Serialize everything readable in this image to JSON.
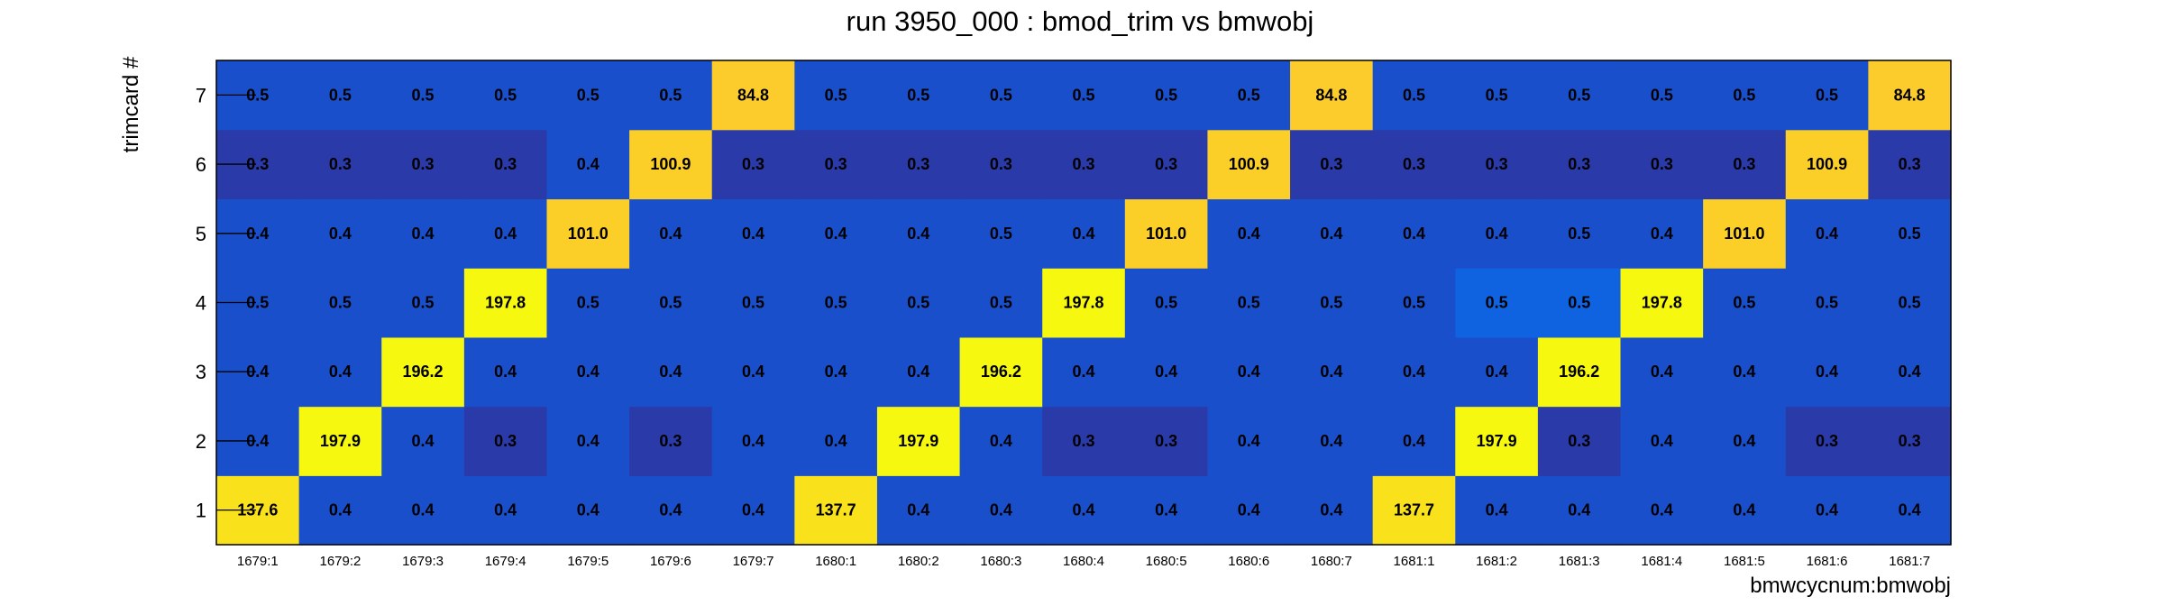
{
  "chart_data": {
    "type": "heatmap",
    "title": "run 3950_000 : bmod_trim vs bmwobj",
    "xlabel": "bmwcycnum:bmwobj",
    "ylabel": "trimcard #",
    "x_categories": [
      "1679:1",
      "1679:2",
      "1679:3",
      "1679:4",
      "1679:5",
      "1679:6",
      "1679:7",
      "1680:1",
      "1680:2",
      "1680:3",
      "1680:4",
      "1680:5",
      "1680:6",
      "1680:7",
      "1681:1",
      "1681:2",
      "1681:3",
      "1681:4",
      "1681:5",
      "1681:6",
      "1681:7"
    ],
    "y_categories": [
      "1",
      "2",
      "3",
      "4",
      "5",
      "6",
      "7"
    ],
    "values": [
      [
        137.6,
        0.4,
        0.4,
        0.4,
        0.4,
        0.4,
        0.4,
        137.7,
        0.4,
        0.4,
        0.4,
        0.4,
        0.4,
        0.4,
        137.7,
        0.4,
        0.4,
        0.4,
        0.4,
        0.4,
        0.4
      ],
      [
        0.4,
        197.9,
        0.4,
        0.3,
        0.4,
        0.3,
        0.4,
        0.4,
        197.9,
        0.4,
        0.3,
        0.3,
        0.4,
        0.4,
        0.4,
        197.9,
        0.3,
        0.4,
        0.4,
        0.3,
        0.3
      ],
      [
        0.4,
        0.4,
        196.2,
        0.4,
        0.4,
        0.4,
        0.4,
        0.4,
        0.4,
        196.2,
        0.4,
        0.4,
        0.4,
        0.4,
        0.4,
        0.4,
        196.2,
        0.4,
        0.4,
        0.4,
        0.4
      ],
      [
        0.5,
        0.5,
        0.5,
        197.8,
        0.5,
        0.5,
        0.5,
        0.5,
        0.5,
        0.5,
        197.8,
        0.5,
        0.5,
        0.5,
        0.5,
        0.5,
        0.5,
        197.8,
        0.5,
        0.5,
        0.5
      ],
      [
        0.4,
        0.4,
        0.4,
        0.4,
        101.0,
        0.4,
        0.4,
        0.4,
        0.4,
        0.5,
        0.4,
        101.0,
        0.4,
        0.4,
        0.4,
        0.4,
        0.5,
        0.4,
        101.0,
        0.4,
        0.5
      ],
      [
        0.3,
        0.3,
        0.3,
        0.3,
        0.4,
        100.9,
        0.3,
        0.3,
        0.3,
        0.3,
        0.3,
        0.3,
        100.9,
        0.3,
        0.3,
        0.3,
        0.3,
        0.3,
        0.3,
        100.9,
        0.3
      ],
      [
        0.5,
        0.5,
        0.5,
        0.5,
        0.5,
        0.5,
        84.8,
        0.5,
        0.5,
        0.5,
        0.5,
        0.5,
        0.5,
        84.8,
        0.5,
        0.5,
        0.5,
        0.5,
        0.5,
        0.5,
        84.8
      ]
    ],
    "colors": {
      "0.3": "#2a3aa8",
      "0.4": "#1a4fcb",
      "0.5": "#1a4fcb",
      "0.5_light": "#0f63e0",
      "84.8": "#fbcc2c",
      "100.9": "#fbcf27",
      "101.0": "#fbcf27",
      "137.6": "#f9e21c",
      "137.7": "#f9e21c",
      "high": "#f6f80f"
    }
  }
}
